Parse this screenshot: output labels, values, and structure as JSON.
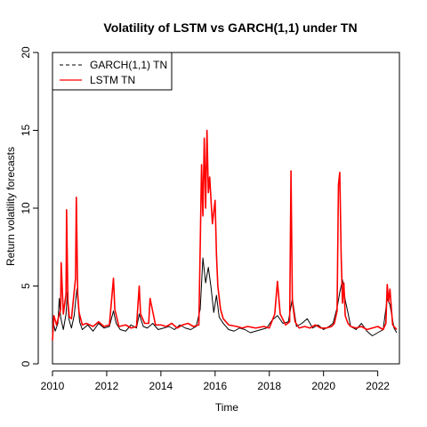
{
  "chart_data": {
    "type": "line",
    "title": "Volatility of LSTM vs GARCH(1,1) under TN",
    "xlabel": "Time",
    "ylabel": "Return volatility forecasts",
    "xlim": [
      2010,
      2022.8
    ],
    "ylim": [
      0,
      20
    ],
    "x_ticks": [
      2010,
      2012,
      2014,
      2016,
      2018,
      2020,
      2022
    ],
    "y_ticks": [
      0,
      5,
      10,
      15,
      20
    ],
    "grid": false,
    "legend": {
      "position": "top-left",
      "boxed": true
    },
    "series": [
      {
        "name": "GARCH(1,1) TN",
        "color": "#000000",
        "line_style": "dashed-legend",
        "x": [
          2010.0,
          2010.1,
          2010.2,
          2010.25,
          2010.3,
          2010.4,
          2010.5,
          2010.55,
          2010.6,
          2010.7,
          2010.8,
          2010.9,
          2010.95,
          2011.0,
          2011.1,
          2011.3,
          2011.5,
          2011.7,
          2011.9,
          2012.1,
          2012.25,
          2012.35,
          2012.5,
          2012.7,
          2012.9,
          2013.1,
          2013.2,
          2013.35,
          2013.5,
          2013.7,
          2013.9,
          2014.1,
          2014.3,
          2014.5,
          2014.7,
          2014.9,
          2015.1,
          2015.3,
          2015.45,
          2015.55,
          2015.65,
          2015.75,
          2015.85,
          2015.95,
          2016.05,
          2016.15,
          2016.3,
          2016.5,
          2016.7,
          2016.9,
          2017.1,
          2017.3,
          2017.5,
          2017.7,
          2017.9,
          2018.1,
          2018.3,
          2018.5,
          2018.7,
          2018.85,
          2019.0,
          2019.2,
          2019.4,
          2019.6,
          2019.8,
          2020.0,
          2020.2,
          2020.35,
          2020.5,
          2020.6,
          2020.7,
          2020.8,
          2020.9,
          2021.0,
          2021.2,
          2021.4,
          2021.6,
          2021.8,
          2022.0,
          2022.2,
          2022.35,
          2022.45,
          2022.6,
          2022.7
        ],
        "values": [
          2.9,
          2.1,
          2.6,
          4.2,
          3.0,
          2.2,
          3.2,
          4.6,
          2.9,
          2.3,
          3.1,
          4.8,
          3.8,
          2.7,
          2.2,
          2.5,
          2.1,
          2.6,
          2.3,
          2.4,
          3.4,
          2.6,
          2.2,
          2.1,
          2.5,
          2.3,
          3.2,
          2.4,
          2.3,
          2.6,
          2.2,
          2.3,
          2.4,
          2.2,
          2.5,
          2.3,
          2.2,
          2.4,
          3.5,
          6.8,
          5.2,
          6.2,
          4.9,
          3.3,
          4.4,
          3.0,
          2.6,
          2.2,
          2.1,
          2.3,
          2.2,
          2.0,
          2.1,
          2.2,
          2.3,
          2.8,
          3.1,
          2.6,
          2.7,
          4.2,
          2.4,
          2.6,
          2.9,
          2.3,
          2.5,
          2.2,
          2.4,
          2.6,
          3.6,
          4.6,
          5.4,
          4.1,
          3.3,
          2.4,
          2.2,
          2.6,
          2.1,
          1.8,
          2.0,
          2.2,
          4.2,
          3.8,
          2.3,
          2.0
        ]
      },
      {
        "name": "LSTM TN",
        "color": "#ff0000",
        "line_style": "solid",
        "x": [
          2010.0,
          2010.05,
          2010.15,
          2010.3,
          2010.32,
          2010.4,
          2010.5,
          2010.52,
          2010.57,
          2010.62,
          2010.7,
          2010.85,
          2010.88,
          2010.93,
          2010.98,
          2011.1,
          2011.25,
          2011.5,
          2011.7,
          2011.9,
          2012.1,
          2012.25,
          2012.3,
          2012.45,
          2012.7,
          2012.9,
          2013.1,
          2013.2,
          2013.25,
          2013.4,
          2013.55,
          2013.6,
          2013.8,
          2014.0,
          2014.2,
          2014.4,
          2014.6,
          2014.8,
          2015.0,
          2015.2,
          2015.4,
          2015.45,
          2015.5,
          2015.55,
          2015.6,
          2015.65,
          2015.7,
          2015.75,
          2015.8,
          2015.9,
          2016.0,
          2016.05,
          2016.1,
          2016.2,
          2016.3,
          2016.5,
          2016.8,
          2017.0,
          2017.2,
          2017.5,
          2017.8,
          2018.0,
          2018.2,
          2018.3,
          2018.4,
          2018.6,
          2018.75,
          2018.8,
          2018.85,
          2018.95,
          2019.1,
          2019.3,
          2019.5,
          2019.7,
          2019.9,
          2020.1,
          2020.3,
          2020.4,
          2020.5,
          2020.55,
          2020.6,
          2020.65,
          2020.7,
          2020.75,
          2020.8,
          2020.9,
          2021.0,
          2021.2,
          2021.4,
          2021.6,
          2021.8,
          2022.0,
          2022.2,
          2022.3,
          2022.35,
          2022.4,
          2022.45,
          2022.55,
          2022.7
        ],
        "values": [
          1.5,
          3.1,
          2.5,
          3.5,
          6.5,
          3.2,
          4.5,
          9.9,
          4.0,
          3.0,
          2.9,
          5.5,
          10.7,
          4.5,
          3.3,
          2.5,
          2.6,
          2.4,
          2.7,
          2.4,
          2.5,
          5.5,
          3.5,
          2.4,
          2.5,
          2.3,
          2.4,
          5.0,
          3.2,
          2.6,
          2.6,
          4.2,
          2.5,
          2.5,
          2.4,
          2.6,
          2.3,
          2.5,
          2.6,
          2.4,
          2.5,
          7.5,
          12.8,
          9.5,
          14.5,
          10.0,
          15.0,
          11.0,
          12.0,
          9.0,
          10.5,
          7.0,
          5.0,
          3.5,
          2.9,
          2.5,
          2.4,
          2.3,
          2.4,
          2.3,
          2.4,
          2.3,
          3.2,
          5.3,
          3.2,
          2.5,
          2.7,
          12.4,
          4.0,
          2.7,
          2.3,
          2.4,
          2.3,
          2.5,
          2.3,
          2.3,
          2.4,
          2.6,
          3.4,
          11.5,
          12.3,
          7.0,
          3.9,
          5.2,
          3.1,
          2.6,
          2.4,
          2.3,
          2.4,
          2.2,
          2.3,
          2.4,
          2.2,
          2.6,
          5.1,
          4.0,
          4.8,
          2.5,
          2.2
        ]
      }
    ]
  }
}
